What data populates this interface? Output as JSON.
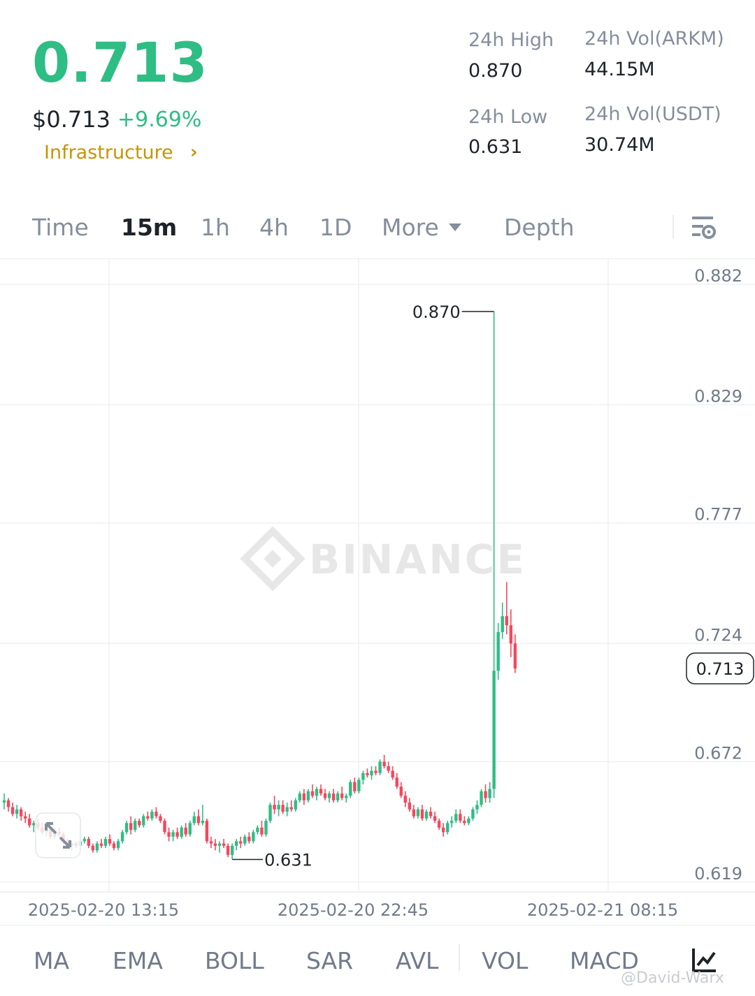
{
  "header": {
    "last_price": "0.713",
    "usd_price": "$0.713",
    "change_pct": "+9.69%",
    "category": "Infrastructure",
    "colors": {
      "up": "#2ebd85",
      "down": "#f6465d",
      "category": "#c99400"
    }
  },
  "stats": {
    "high_label": "24h High",
    "high_value": "0.870",
    "low_label": "24h Low",
    "low_value": "0.631",
    "vol_base_label": "24h Vol(ARKM)",
    "vol_base_value": "44.15M",
    "vol_quote_label": "24h Vol(USDT)",
    "vol_quote_value": "30.74M"
  },
  "tabs": {
    "time": "Time",
    "m15": "15m",
    "h1": "1h",
    "h4": "4h",
    "d1": "1D",
    "more": "More",
    "depth": "Depth",
    "active": "15m"
  },
  "chart_data": {
    "type": "candlestick",
    "watermark": "BINANCE",
    "y_ticks": [
      "0.882",
      "0.829",
      "0.777",
      "0.724",
      "0.672",
      "0.619"
    ],
    "y_range": [
      0.619,
      0.882
    ],
    "x_ticks": [
      "2025-02-20 13:15",
      "2025-02-20 22:45",
      "2025-02-21 08:15"
    ],
    "high_marker": {
      "label": "0.870",
      "value": 0.87
    },
    "low_marker": {
      "label": "0.631",
      "value": 0.631
    },
    "current_price": {
      "label": "0.713",
      "value": 0.713
    },
    "candles": [
      [
        0.654,
        0.658,
        0.651,
        0.655
      ],
      [
        0.655,
        0.656,
        0.65,
        0.652
      ],
      [
        0.652,
        0.654,
        0.648,
        0.649
      ],
      [
        0.649,
        0.653,
        0.647,
        0.651
      ],
      [
        0.651,
        0.652,
        0.646,
        0.648
      ],
      [
        0.648,
        0.65,
        0.645,
        0.647
      ],
      [
        0.647,
        0.649,
        0.643,
        0.644
      ],
      [
        0.644,
        0.646,
        0.641,
        0.645
      ],
      [
        0.645,
        0.647,
        0.642,
        0.643
      ],
      [
        0.643,
        0.645,
        0.64,
        0.641
      ],
      [
        0.641,
        0.644,
        0.639,
        0.642
      ],
      [
        0.642,
        0.644,
        0.638,
        0.639
      ],
      [
        0.639,
        0.643,
        0.638,
        0.641
      ],
      [
        0.641,
        0.643,
        0.639,
        0.64
      ],
      [
        0.64,
        0.641,
        0.636,
        0.637
      ],
      [
        0.637,
        0.638,
        0.634,
        0.635
      ],
      [
        0.635,
        0.637,
        0.633,
        0.636
      ],
      [
        0.636,
        0.637,
        0.634,
        0.635
      ],
      [
        0.635,
        0.638,
        0.634,
        0.637
      ],
      [
        0.637,
        0.639,
        0.636,
        0.638
      ],
      [
        0.638,
        0.639,
        0.634,
        0.635
      ],
      [
        0.635,
        0.636,
        0.632,
        0.633
      ],
      [
        0.633,
        0.637,
        0.632,
        0.636
      ],
      [
        0.636,
        0.638,
        0.634,
        0.635
      ],
      [
        0.635,
        0.639,
        0.634,
        0.638
      ],
      [
        0.638,
        0.64,
        0.635,
        0.636
      ],
      [
        0.636,
        0.637,
        0.633,
        0.634
      ],
      [
        0.634,
        0.638,
        0.633,
        0.637
      ],
      [
        0.637,
        0.642,
        0.636,
        0.641
      ],
      [
        0.641,
        0.646,
        0.64,
        0.645
      ],
      [
        0.645,
        0.648,
        0.64,
        0.642
      ],
      [
        0.642,
        0.647,
        0.641,
        0.646
      ],
      [
        0.646,
        0.647,
        0.643,
        0.644
      ],
      [
        0.644,
        0.649,
        0.643,
        0.648
      ],
      [
        0.648,
        0.65,
        0.646,
        0.647
      ],
      [
        0.647,
        0.651,
        0.646,
        0.65
      ],
      [
        0.65,
        0.652,
        0.647,
        0.648
      ],
      [
        0.648,
        0.649,
        0.645,
        0.646
      ],
      [
        0.646,
        0.647,
        0.64,
        0.641
      ],
      [
        0.641,
        0.643,
        0.637,
        0.639
      ],
      [
        0.639,
        0.642,
        0.637,
        0.641
      ],
      [
        0.641,
        0.643,
        0.638,
        0.639
      ],
      [
        0.639,
        0.644,
        0.638,
        0.643
      ],
      [
        0.643,
        0.645,
        0.639,
        0.64
      ],
      [
        0.64,
        0.646,
        0.639,
        0.645
      ],
      [
        0.645,
        0.65,
        0.644,
        0.648
      ],
      [
        0.648,
        0.651,
        0.644,
        0.645
      ],
      [
        0.645,
        0.653,
        0.644,
        0.646
      ],
      [
        0.646,
        0.647,
        0.636,
        0.637
      ],
      [
        0.637,
        0.639,
        0.634,
        0.636
      ],
      [
        0.636,
        0.638,
        0.633,
        0.635
      ],
      [
        0.635,
        0.637,
        0.632,
        0.636
      ],
      [
        0.636,
        0.638,
        0.634,
        0.635
      ],
      [
        0.635,
        0.636,
        0.63,
        0.631
      ],
      [
        0.631,
        0.636,
        0.629,
        0.635
      ],
      [
        0.635,
        0.638,
        0.633,
        0.637
      ],
      [
        0.637,
        0.639,
        0.634,
        0.636
      ],
      [
        0.636,
        0.64,
        0.635,
        0.639
      ],
      [
        0.639,
        0.641,
        0.636,
        0.637
      ],
      [
        0.637,
        0.642,
        0.636,
        0.641
      ],
      [
        0.641,
        0.644,
        0.64,
        0.643
      ],
      [
        0.643,
        0.646,
        0.639,
        0.64
      ],
      [
        0.64,
        0.647,
        0.639,
        0.646
      ],
      [
        0.646,
        0.654,
        0.645,
        0.653
      ],
      [
        0.653,
        0.657,
        0.649,
        0.651
      ],
      [
        0.651,
        0.655,
        0.648,
        0.653
      ],
      [
        0.653,
        0.655,
        0.649,
        0.65
      ],
      [
        0.65,
        0.654,
        0.648,
        0.652
      ],
      [
        0.652,
        0.655,
        0.65,
        0.651
      ],
      [
        0.651,
        0.656,
        0.65,
        0.655
      ],
      [
        0.655,
        0.659,
        0.654,
        0.658
      ],
      [
        0.658,
        0.66,
        0.653,
        0.655
      ],
      [
        0.655,
        0.66,
        0.654,
        0.659
      ],
      [
        0.659,
        0.662,
        0.656,
        0.657
      ],
      [
        0.657,
        0.661,
        0.655,
        0.66
      ],
      [
        0.66,
        0.662,
        0.657,
        0.658
      ],
      [
        0.658,
        0.66,
        0.655,
        0.656
      ],
      [
        0.656,
        0.659,
        0.654,
        0.658
      ],
      [
        0.658,
        0.66,
        0.654,
        0.655
      ],
      [
        0.655,
        0.659,
        0.654,
        0.658
      ],
      [
        0.658,
        0.661,
        0.655,
        0.656
      ],
      [
        0.656,
        0.658,
        0.654,
        0.657
      ],
      [
        0.657,
        0.664,
        0.656,
        0.663
      ],
      [
        0.663,
        0.665,
        0.658,
        0.659
      ],
      [
        0.659,
        0.665,
        0.658,
        0.664
      ],
      [
        0.664,
        0.668,
        0.662,
        0.667
      ],
      [
        0.667,
        0.669,
        0.665,
        0.666
      ],
      [
        0.666,
        0.67,
        0.664,
        0.668
      ],
      [
        0.668,
        0.67,
        0.666,
        0.667
      ],
      [
        0.667,
        0.673,
        0.666,
        0.672
      ],
      [
        0.672,
        0.675,
        0.669,
        0.67
      ],
      [
        0.67,
        0.672,
        0.667,
        0.668
      ],
      [
        0.668,
        0.67,
        0.664,
        0.665
      ],
      [
        0.665,
        0.667,
        0.66,
        0.661
      ],
      [
        0.661,
        0.663,
        0.656,
        0.657
      ],
      [
        0.657,
        0.659,
        0.652,
        0.654
      ],
      [
        0.654,
        0.656,
        0.65,
        0.651
      ],
      [
        0.651,
        0.653,
        0.647,
        0.648
      ],
      [
        0.648,
        0.652,
        0.647,
        0.651
      ],
      [
        0.651,
        0.653,
        0.646,
        0.647
      ],
      [
        0.647,
        0.651,
        0.646,
        0.65
      ],
      [
        0.65,
        0.652,
        0.647,
        0.648
      ],
      [
        0.648,
        0.65,
        0.645,
        0.646
      ],
      [
        0.646,
        0.647,
        0.642,
        0.643
      ],
      [
        0.643,
        0.645,
        0.639,
        0.641
      ],
      [
        0.641,
        0.646,
        0.64,
        0.645
      ],
      [
        0.645,
        0.648,
        0.643,
        0.646
      ],
      [
        0.646,
        0.651,
        0.645,
        0.649
      ],
      [
        0.649,
        0.651,
        0.645,
        0.646
      ],
      [
        0.646,
        0.648,
        0.644,
        0.645
      ],
      [
        0.645,
        0.648,
        0.644,
        0.647
      ],
      [
        0.647,
        0.652,
        0.646,
        0.651
      ],
      [
        0.651,
        0.655,
        0.649,
        0.653
      ],
      [
        0.653,
        0.66,
        0.652,
        0.659
      ],
      [
        0.659,
        0.662,
        0.654,
        0.656
      ],
      [
        0.656,
        0.663,
        0.654,
        0.66
      ],
      [
        0.66,
        0.87,
        0.656,
        0.712
      ],
      [
        0.712,
        0.733,
        0.708,
        0.729
      ],
      [
        0.729,
        0.742,
        0.726,
        0.736
      ],
      [
        0.736,
        0.751,
        0.728,
        0.732
      ],
      [
        0.732,
        0.739,
        0.718,
        0.724
      ],
      [
        0.724,
        0.728,
        0.711,
        0.713
      ]
    ]
  },
  "indicators": [
    "MA",
    "EMA",
    "BOLL",
    "SAR",
    "AVL",
    "VOL",
    "MACD"
  ],
  "watermark_credit": "@David-Warx"
}
